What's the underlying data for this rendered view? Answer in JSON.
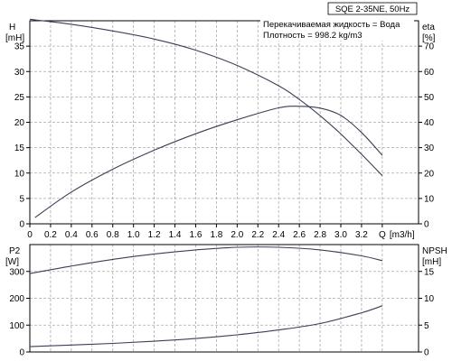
{
  "chart_data": {
    "type": "line",
    "title": "SQE 2-35NE, 50Hz",
    "info": [
      "Перекачиваемая жидкость = Вода",
      "Плотность = 998.2 kg/m3"
    ],
    "xlabel": "Q [m3/h]",
    "x_ticks": [
      "0",
      "0.2",
      "0.4",
      "0.6",
      "0.8",
      "1.0",
      "1.2",
      "1.4",
      "1.6",
      "1.8",
      "2.0",
      "2.2",
      "2.4",
      "2.6",
      "2.8",
      "3.0",
      "3.2",
      "Q",
      "[m3/h]"
    ],
    "upper": {
      "left_axis": {
        "label_top": "H",
        "label_unit": "[mH]",
        "ylim": [
          0,
          40
        ],
        "ticks": [
          "0",
          "5",
          "10",
          "15",
          "20",
          "25",
          "30",
          "35"
        ]
      },
      "right_axis": {
        "label_top": "eta",
        "label_unit": "[%]",
        "ylim": [
          0,
          80
        ],
        "ticks": [
          "0",
          "10",
          "20",
          "30",
          "40",
          "50",
          "60",
          "70"
        ]
      },
      "grid": true,
      "series": [
        {
          "axis": "left",
          "x": [
            0,
            0.4,
            0.8,
            1.2,
            1.6,
            2.0,
            2.4,
            2.6,
            2.8,
            3.0,
            3.2,
            3.4
          ],
          "y": [
            40.3,
            39.3,
            38.0,
            36.4,
            34.2,
            31.2,
            27.2,
            24.5,
            21.3,
            17.7,
            13.7,
            9.5
          ]
        },
        {
          "axis": "right",
          "x": [
            0.05,
            0.4,
            0.8,
            1.2,
            1.6,
            2.0,
            2.4,
            2.6,
            2.8,
            3.0,
            3.2,
            3.4
          ],
          "y": [
            2.5,
            12.5,
            21.5,
            29.0,
            35.5,
            41.0,
            45.7,
            46.3,
            45.6,
            42.7,
            36.0,
            27.0
          ]
        }
      ]
    },
    "lower": {
      "left_axis": {
        "label_top": "P2",
        "label_unit": "[W]",
        "ylim": [
          0,
          400
        ],
        "ticks": [
          "0",
          "100",
          "200",
          "300"
        ]
      },
      "right_axis": {
        "label_top": "NPSH",
        "label_unit": "[mH]",
        "ylim": [
          0,
          20
        ],
        "ticks": [
          "0",
          "5",
          "10",
          "15"
        ]
      },
      "grid": true,
      "series": [
        {
          "axis": "left",
          "x": [
            0,
            0.4,
            0.8,
            1.2,
            1.6,
            2.0,
            2.4,
            2.8,
            3.2,
            3.4
          ],
          "y": [
            292,
            320,
            345,
            365,
            380,
            390,
            390,
            380,
            358,
            340
          ]
        },
        {
          "axis": "right",
          "x": [
            0,
            0.4,
            0.8,
            1.2,
            1.6,
            2.0,
            2.4,
            2.8,
            3.2,
            3.4
          ],
          "y": [
            1.0,
            1.3,
            1.6,
            2.0,
            2.5,
            3.2,
            4.1,
            5.3,
            7.3,
            8.6
          ]
        }
      ]
    }
  }
}
